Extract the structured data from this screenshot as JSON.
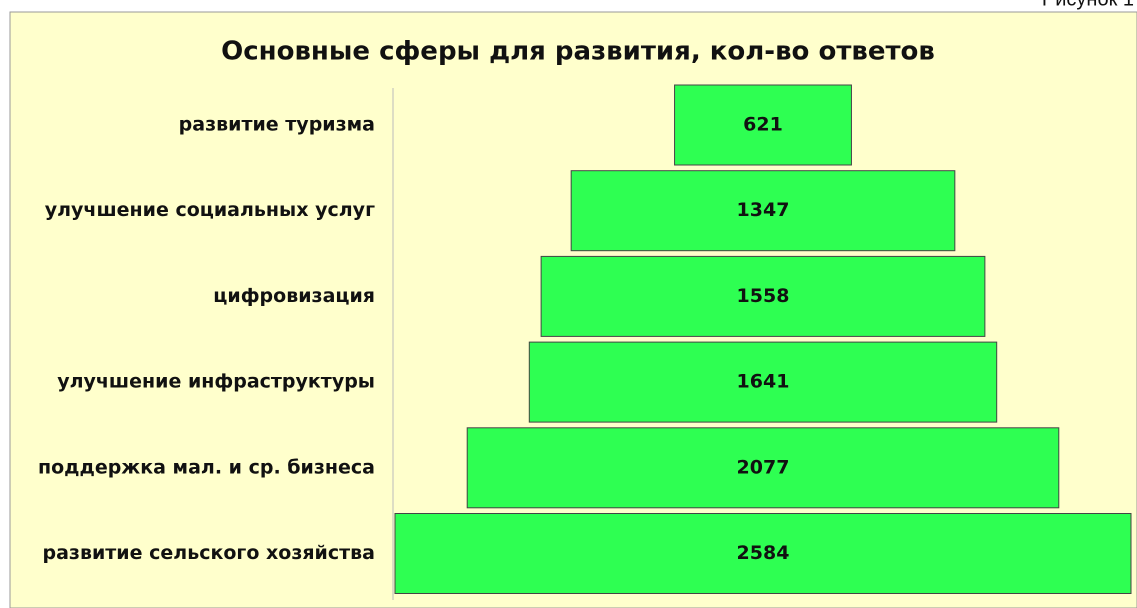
{
  "caption": "Рисунок 1",
  "chart_data": {
    "type": "funnel",
    "title": "Основные сферы для развития, кол-во ответов",
    "categories": [
      "развитие туризма",
      "улучшение социальных услуг",
      "цифровизация",
      "улучшение  инфраструктуры",
      "поддержка мал. и ср. бизнеса",
      "развитие сельского хозяйства"
    ],
    "values": [
      621,
      1347,
      1558,
      1641,
      2077,
      2584
    ],
    "color": "#2eff52"
  }
}
